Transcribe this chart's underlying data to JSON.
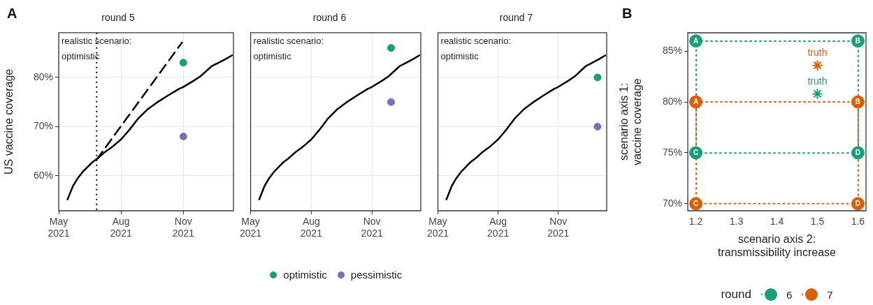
{
  "chart_data": [
    {
      "type": "line",
      "title": "round 5",
      "ylabel": "US vaccine coverage",
      "annotations": [
        "A",
        "realistic scenario: optimistic"
      ],
      "xlim": [
        "2021-05-01",
        "2022-01-14"
      ],
      "ylim": [
        52.9,
        89.1
      ],
      "xticks": [
        {
          "value": "2021-05-01",
          "label": "May 2021"
        },
        {
          "value": "2021-08-01",
          "label": "Aug 2021"
        },
        {
          "value": "2021-11-01",
          "label": "Nov 2021"
        }
      ],
      "yticks": [
        {
          "value": 60,
          "label": "60%"
        },
        {
          "value": 70,
          "label": "70%"
        },
        {
          "value": 80,
          "label": "80%"
        }
      ],
      "grid": true,
      "legend": false,
      "ref_lines": [
        {
          "axis": "x",
          "value": "2021-06-26",
          "color": "#000000",
          "line_style": "dotted"
        }
      ],
      "series": [
        {
          "type": "line",
          "color": "#000000",
          "line_style": "solid",
          "marker": "none",
          "x": [
            "2021-05-14",
            "2021-05-22",
            "2021-05-29",
            "2021-06-06",
            "2021-06-20",
            "2021-06-27",
            "2021-07-07",
            "2021-07-20",
            "2021-08-01",
            "2021-08-13",
            "2021-08-26",
            "2021-09-09",
            "2021-09-23",
            "2021-10-09",
            "2021-10-26",
            "2021-10-31",
            "2021-11-16",
            "2021-11-26",
            "2021-12-13",
            "2021-12-23",
            "2022-01-02",
            "2022-01-12"
          ],
          "values": [
            55.2,
            57.9,
            59.5,
            60.9,
            62.8,
            63.5,
            64.7,
            66.0,
            67.4,
            69.3,
            71.6,
            73.5,
            74.9,
            76.3,
            77.7,
            78.0,
            79.3,
            80.2,
            82.3,
            83.0,
            83.7,
            84.5
          ]
        },
        {
          "type": "line",
          "color": "#000000",
          "line_style": "dashed",
          "marker": "none",
          "x": [
            "2021-06-26",
            "2021-10-30"
          ],
          "values": [
            63.3,
            87.1
          ]
        },
        {
          "type": "scatter",
          "color": "#1b9e77",
          "marker": "circle",
          "x": [
            "2021-11-01"
          ],
          "values": [
            83
          ]
        },
        {
          "type": "scatter",
          "color": "#7570b3",
          "marker": "circle",
          "x": [
            "2021-11-01"
          ],
          "values": [
            68
          ]
        }
      ],
      "tick_labels": true
    },
    {
      "type": "line",
      "title": "round 6",
      "annotations": [
        "realistic scenario: optimistic"
      ],
      "xlim": [
        "2021-05-01",
        "2022-01-14"
      ],
      "ylim": [
        52.9,
        89.1
      ],
      "xticks": [
        {
          "value": "2021-05-01",
          "label": "May 2021"
        },
        {
          "value": "2021-08-01",
          "label": "Aug 2021"
        },
        {
          "value": "2021-11-01",
          "label": "Nov 2021"
        }
      ],
      "yticks": [
        60,
        70,
        80
      ],
      "grid": true,
      "legend": "bottom",
      "tick_labels": "x",
      "series": [
        {
          "type": "line",
          "color": "#000000",
          "line_style": "solid",
          "marker": "none",
          "x": [
            "2021-05-14",
            "2021-05-22",
            "2021-05-29",
            "2021-06-06",
            "2021-06-20",
            "2021-06-27",
            "2021-07-07",
            "2021-07-20",
            "2021-08-01",
            "2021-08-13",
            "2021-08-26",
            "2021-09-09",
            "2021-09-23",
            "2021-10-09",
            "2021-10-26",
            "2021-10-31",
            "2021-11-16",
            "2021-11-26",
            "2021-12-13",
            "2021-12-23",
            "2022-01-02",
            "2022-01-12"
          ],
          "values": [
            55.2,
            57.9,
            59.5,
            60.9,
            62.8,
            63.5,
            64.7,
            66.0,
            67.4,
            69.3,
            71.6,
            73.5,
            74.9,
            76.3,
            77.7,
            78.0,
            79.3,
            80.2,
            82.3,
            83.0,
            83.7,
            84.5
          ]
        },
        {
          "type": "scatter",
          "name": "optimistic",
          "color": "#1b9e77",
          "marker": "circle",
          "x": [
            "2021-11-30"
          ],
          "values": [
            86
          ]
        },
        {
          "type": "scatter",
          "name": "pessimistic",
          "color": "#7570b3",
          "marker": "circle",
          "x": [
            "2021-11-30"
          ],
          "values": [
            75
          ]
        }
      ]
    },
    {
      "type": "line",
      "title": "round 7",
      "annotations": [
        "realistic scenario: optimistic"
      ],
      "xlim": [
        "2021-05-01",
        "2022-01-14"
      ],
      "ylim": [
        52.9,
        89.1
      ],
      "xticks": [
        {
          "value": "2021-05-01",
          "label": "May 2021"
        },
        {
          "value": "2021-08-01",
          "label": "Aug 2021"
        },
        {
          "value": "2021-11-01",
          "label": "Nov 2021"
        }
      ],
      "yticks": [
        60,
        70,
        80
      ],
      "grid": true,
      "legend": false,
      "tick_labels": "x",
      "series": [
        {
          "type": "line",
          "color": "#000000",
          "line_style": "solid",
          "marker": "none",
          "x": [
            "2021-05-14",
            "2021-05-22",
            "2021-05-29",
            "2021-06-06",
            "2021-06-20",
            "2021-06-27",
            "2021-07-07",
            "2021-07-20",
            "2021-08-01",
            "2021-08-13",
            "2021-08-26",
            "2021-09-09",
            "2021-09-23",
            "2021-10-09",
            "2021-10-26",
            "2021-10-31",
            "2021-11-16",
            "2021-11-26",
            "2021-12-13",
            "2021-12-23",
            "2022-01-02",
            "2022-01-12"
          ],
          "values": [
            55.2,
            57.9,
            59.5,
            60.9,
            62.8,
            63.5,
            64.7,
            66.0,
            67.4,
            69.3,
            71.6,
            73.5,
            74.9,
            76.3,
            77.7,
            78.0,
            79.3,
            80.2,
            82.3,
            83.0,
            83.7,
            84.5
          ]
        },
        {
          "type": "scatter",
          "color": "#1b9e77",
          "marker": "circle",
          "x": [
            "2021-12-31"
          ],
          "values": [
            80
          ]
        },
        {
          "type": "scatter",
          "color": "#7570b3",
          "marker": "circle",
          "x": [
            "2021-12-31"
          ],
          "values": [
            70
          ]
        }
      ]
    },
    {
      "type": "scatter",
      "xlabel": "scenario axis 2: transmissibility increase",
      "ylabel": "scenario axis 1: vaccine coverage",
      "annotations": [
        "B"
      ],
      "xlim": [
        1.18,
        1.62
      ],
      "ylim": [
        69.3,
        86.8
      ],
      "xticks": [
        1.2,
        1.3,
        1.4,
        1.5,
        1.6
      ],
      "yticks": [
        {
          "value": 70,
          "label": "70%"
        },
        {
          "value": 75,
          "label": "75%"
        },
        {
          "value": 80,
          "label": "80%"
        },
        {
          "value": 85,
          "label": "85%"
        }
      ],
      "grid": false,
      "legend": "bottom",
      "legend_title": "round",
      "series": [
        {
          "type": "scatter",
          "name": "6",
          "color": "#1b9e77",
          "marker": "circle",
          "line_style": "dotted",
          "x": [
            1.2,
            1.6,
            1.2,
            1.6
          ],
          "values": [
            86,
            86,
            75,
            75
          ],
          "value_labels": [
            "A",
            "B",
            "C",
            "D"
          ]
        },
        {
          "type": "scatter",
          "name": "7",
          "color": "#d95f02",
          "marker": "circle",
          "line_style": "dotted",
          "x": [
            1.2,
            1.6,
            1.2,
            1.6
          ],
          "values": [
            80,
            80,
            70,
            70
          ],
          "value_labels": [
            "A",
            "B",
            "C",
            "D"
          ]
        },
        {
          "type": "scatter",
          "color": "#d95f02",
          "marker": "cross",
          "x": [
            1.5
          ],
          "values": [
            83.6
          ],
          "value_labels": [
            "truth"
          ]
        },
        {
          "type": "scatter",
          "color": "#1b9e77",
          "marker": "cross",
          "x": [
            1.5
          ],
          "values": [
            80.8
          ],
          "value_labels": [
            "truth"
          ]
        }
      ]
    }
  ]
}
